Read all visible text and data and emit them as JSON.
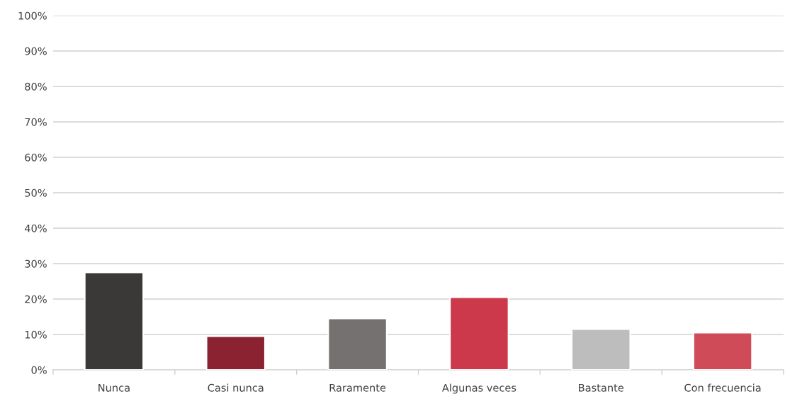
{
  "chart_data": {
    "type": "bar",
    "categories": [
      "Nunca",
      "Casi nunca",
      "Raramente",
      "Algunas veces",
      "Bastante",
      "Con frecuencia"
    ],
    "values": [
      27.5,
      9.5,
      14.5,
      20.5,
      11.5,
      10.5
    ],
    "colors": [
      "#3b3937",
      "#8b2231",
      "#757170",
      "#cb394a",
      "#bdbdbd",
      "#d04b58"
    ],
    "ylim": [
      0,
      100
    ],
    "yticks": [
      {
        "value": 0,
        "label": "0%"
      },
      {
        "value": 10,
        "label": "10%"
      },
      {
        "value": 20,
        "label": "20%"
      },
      {
        "value": 30,
        "label": "30%"
      },
      {
        "value": 40,
        "label": "40%"
      },
      {
        "value": 50,
        "label": "50%"
      },
      {
        "value": 60,
        "label": "60%"
      },
      {
        "value": 70,
        "label": "70%"
      },
      {
        "value": 80,
        "label": "80%"
      },
      {
        "value": 90,
        "label": "90%"
      },
      {
        "value": 100,
        "label": "100%"
      }
    ],
    "grid": "y"
  }
}
